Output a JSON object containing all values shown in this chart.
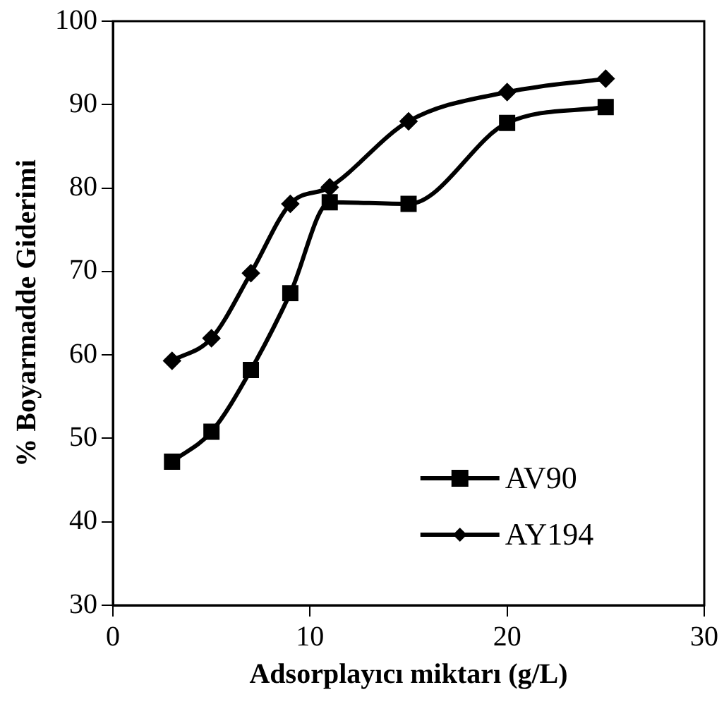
{
  "chart_data": {
    "type": "line",
    "xlabel": "Adsorplayıcı miktarı (g/L)",
    "ylabel": "% Boyarmadde Giderimi",
    "x": [
      3,
      5,
      7,
      9,
      11,
      15,
      20,
      25
    ],
    "series": [
      {
        "name": "AV90",
        "color": "#000000",
        "marker": "square",
        "values": [
          47.2,
          50.8,
          58.2,
          67.4,
          78.3,
          78.1,
          87.8,
          89.7
        ]
      },
      {
        "name": "AY194",
        "color": "#000000",
        "marker": "diamond",
        "values": [
          59.3,
          62.0,
          69.8,
          78.1,
          80.1,
          88.0,
          91.5,
          93.1
        ]
      }
    ],
    "xlim": [
      0,
      30
    ],
    "xticks": [
      0,
      10,
      20,
      30
    ],
    "ylim": [
      30,
      100
    ],
    "yticks": [
      30,
      40,
      50,
      60,
      70,
      80,
      90,
      100
    ],
    "grid": false,
    "legend": "bottom right",
    "line_style": "solid"
  }
}
